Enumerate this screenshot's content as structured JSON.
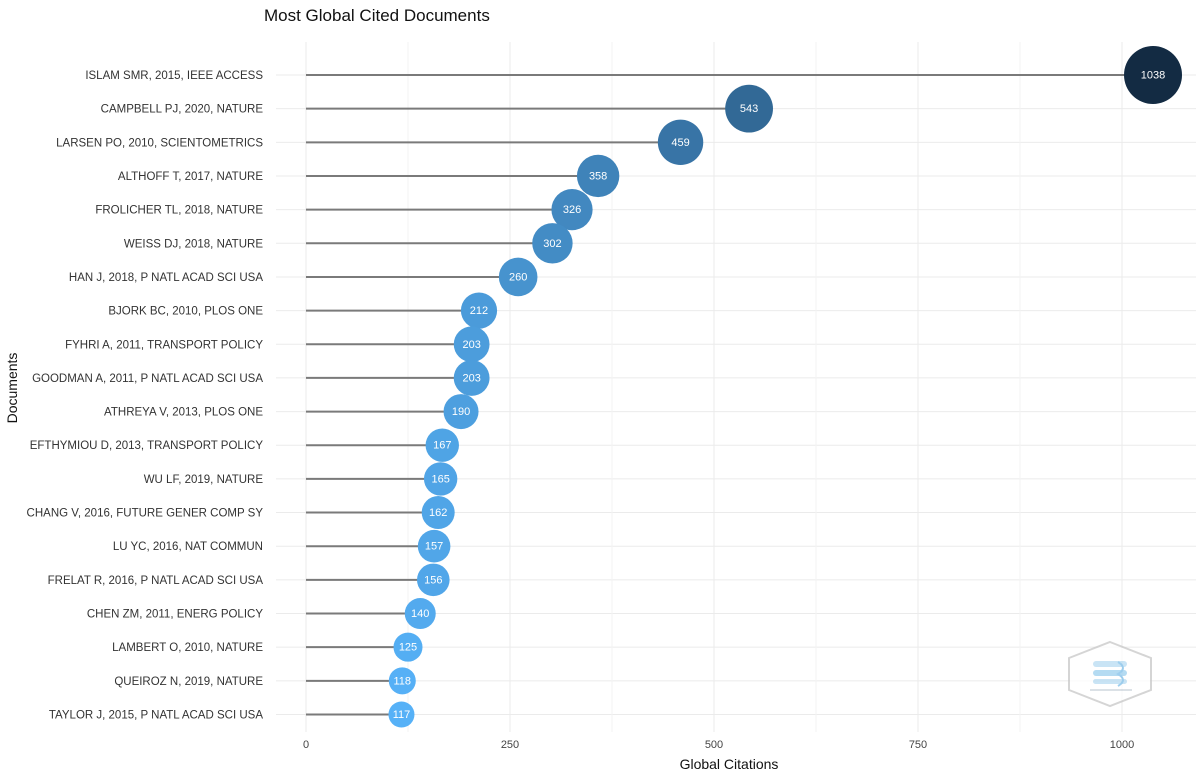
{
  "chart_data": {
    "type": "lollipop",
    "title": "Most Global Cited Documents",
    "xlabel": "Global Citations",
    "ylabel": "Documents",
    "xlim": [
      0,
      1038
    ],
    "xticks": [
      0,
      250,
      500,
      750,
      1000
    ],
    "grid": true,
    "categories": [
      "ISLAM SMR, 2015, IEEE ACCESS",
      "CAMPBELL PJ, 2020, NATURE",
      "LARSEN PO, 2010, SCIENTOMETRICS",
      "ALTHOFF T, 2017, NATURE",
      "FROLICHER TL, 2018, NATURE",
      "WEISS DJ, 2018, NATURE",
      "HAN J, 2018, P NATL ACAD SCI USA",
      "BJORK BC, 2010, PLOS ONE",
      "FYHRI A, 2011, TRANSPORT POLICY",
      "GOODMAN A, 2011, P NATL ACAD SCI USA",
      "ATHREYA V, 2013, PLOS ONE",
      "EFTHYMIOU D, 2013, TRANSPORT POLICY",
      "WU LF, 2019, NATURE",
      "CHANG V, 2016, FUTURE GENER COMP SY",
      "LU YC, 2016, NAT COMMUN",
      "FRELAT R, 2016, P NATL ACAD SCI USA",
      "CHEN ZM, 2011, ENERG POLICY",
      "LAMBERT O, 2010, NATURE",
      "QUEIROZ N, 2019, NATURE",
      "TAYLOR J, 2015, P NATL ACAD SCI USA"
    ],
    "values": [
      1038,
      543,
      459,
      358,
      326,
      302,
      260,
      212,
      203,
      203,
      190,
      167,
      165,
      162,
      157,
      156,
      140,
      125,
      118,
      117
    ],
    "color_scale": {
      "low": "#56b1f7",
      "high": "#132b43"
    },
    "stem_color": "#7a7a7a"
  }
}
